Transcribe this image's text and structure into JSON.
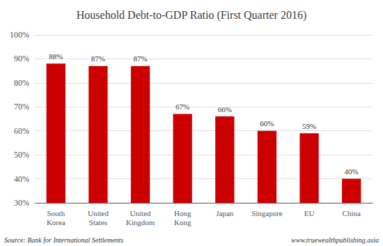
{
  "chart_data": {
    "type": "bar",
    "title": "Household Debt-to-GDP Ratio (First Quarter 2016)",
    "categories": [
      "South\nKorea",
      "United\nStates",
      "United\nKingdom",
      "Hong\nKong",
      "Japan",
      "Singapore",
      "EU",
      "China"
    ],
    "values": [
      88,
      87,
      87,
      67,
      66,
      60,
      59,
      40
    ],
    "value_labels": [
      "88%",
      "87%",
      "87%",
      "67%",
      "66%",
      "60%",
      "59%",
      "40%"
    ],
    "data_labels": true,
    "color": "#cc0000",
    "ylim": [
      30,
      100
    ],
    "yticks": [
      {
        "value": 30,
        "label": "30%"
      },
      {
        "value": 40,
        "label": "40%"
      },
      {
        "value": 50,
        "label": "50%"
      },
      {
        "value": 60,
        "label": "60%"
      },
      {
        "value": 70,
        "label": "70%"
      },
      {
        "value": 80,
        "label": "80%"
      },
      {
        "value": 90,
        "label": "90%"
      },
      {
        "value": 100,
        "label": "100%"
      }
    ],
    "grid": true,
    "annotations": [
      "Source: Bank for International Settlements",
      "www.truewealthpublishing.asia"
    ]
  }
}
